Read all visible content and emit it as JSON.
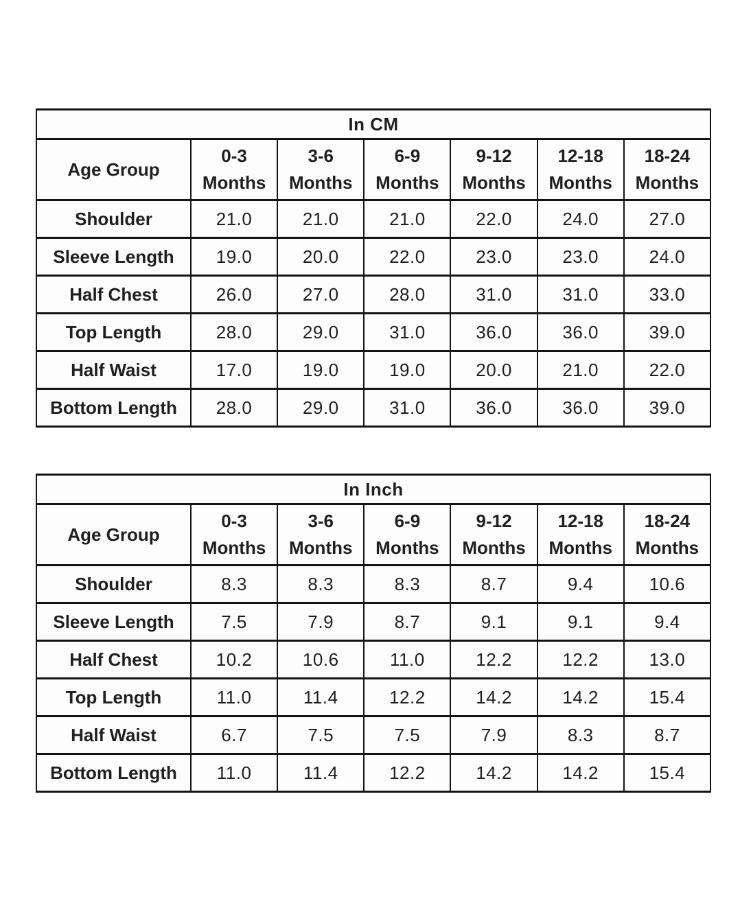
{
  "page_background": "#ffffff",
  "table_style": {
    "border_color": "#141414",
    "text_color": "#1f1f1f",
    "cell_background": "#fdfdfd"
  },
  "chart_data": [
    {
      "type": "table",
      "title": "In CM",
      "corner_label": "Age Group",
      "columns": [
        {
          "range": "0-3",
          "unit": "Months"
        },
        {
          "range": "3-6",
          "unit": "Months"
        },
        {
          "range": "6-9",
          "unit": "Months"
        },
        {
          "range": "9-12",
          "unit": "Months"
        },
        {
          "range": "12-18",
          "unit": "Months"
        },
        {
          "range": "18-24",
          "unit": "Months"
        }
      ],
      "rows": [
        {
          "label": "Shoulder",
          "values": [
            "21.0",
            "21.0",
            "21.0",
            "22.0",
            "24.0",
            "27.0"
          ]
        },
        {
          "label": "Sleeve Length",
          "values": [
            "19.0",
            "20.0",
            "22.0",
            "23.0",
            "23.0",
            "24.0"
          ]
        },
        {
          "label": "Half Chest",
          "values": [
            "26.0",
            "27.0",
            "28.0",
            "31.0",
            "31.0",
            "33.0"
          ]
        },
        {
          "label": "Top Length",
          "values": [
            "28.0",
            "29.0",
            "31.0",
            "36.0",
            "36.0",
            "39.0"
          ]
        },
        {
          "label": "Half Waist",
          "values": [
            "17.0",
            "19.0",
            "19.0",
            "20.0",
            "21.0",
            "22.0"
          ]
        },
        {
          "label": "Bottom Length",
          "values": [
            "28.0",
            "29.0",
            "31.0",
            "36.0",
            "36.0",
            "39.0"
          ]
        }
      ]
    },
    {
      "type": "table",
      "title": "In Inch",
      "corner_label": "Age Group",
      "columns": [
        {
          "range": "0-3",
          "unit": "Months"
        },
        {
          "range": "3-6",
          "unit": "Months"
        },
        {
          "range": "6-9",
          "unit": "Months"
        },
        {
          "range": "9-12",
          "unit": "Months"
        },
        {
          "range": "12-18",
          "unit": "Months"
        },
        {
          "range": "18-24",
          "unit": "Months"
        }
      ],
      "rows": [
        {
          "label": "Shoulder",
          "values": [
            "8.3",
            "8.3",
            "8.3",
            "8.7",
            "9.4",
            "10.6"
          ]
        },
        {
          "label": "Sleeve Length",
          "values": [
            "7.5",
            "7.9",
            "8.7",
            "9.1",
            "9.1",
            "9.4"
          ]
        },
        {
          "label": "Half Chest",
          "values": [
            "10.2",
            "10.6",
            "11.0",
            "12.2",
            "12.2",
            "13.0"
          ]
        },
        {
          "label": "Top Length",
          "values": [
            "11.0",
            "11.4",
            "12.2",
            "14.2",
            "14.2",
            "15.4"
          ]
        },
        {
          "label": "Half Waist",
          "values": [
            "6.7",
            "7.5",
            "7.5",
            "7.9",
            "8.3",
            "8.7"
          ]
        },
        {
          "label": "Bottom Length",
          "values": [
            "11.0",
            "11.4",
            "12.2",
            "14.2",
            "14.2",
            "15.4"
          ]
        }
      ]
    }
  ]
}
